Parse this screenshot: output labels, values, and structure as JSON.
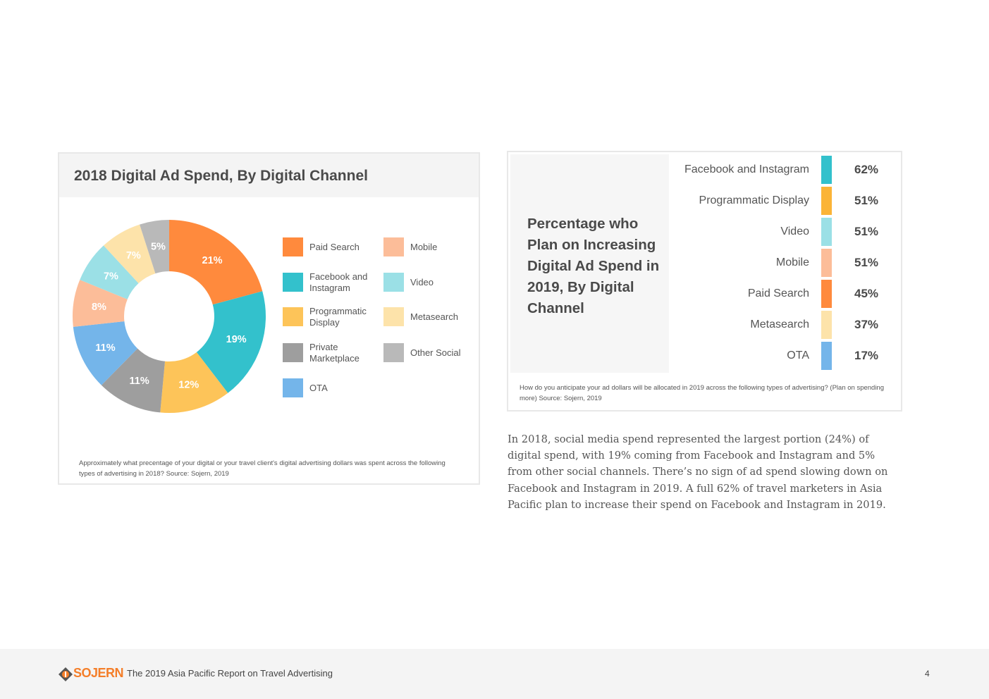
{
  "donut_card": {
    "title": "2018 Digital Ad Spend, By Digital Channel",
    "caption": "Approximately what precentage of your digital or your travel client's digital advertising dollars was spent across the following types of advertising in 2018? Source: Sojern, 2019"
  },
  "bar_card": {
    "title": "Percentage who Plan on Increasing Digital Ad Spend in 2019, By Digital Channel",
    "caption": "How do you anticipate your ad dollars will be allocated in 2019 across the following types of advertising? (Plan on spending more) Source: Sojern, 2019"
  },
  "body_text": "In 2018, social media spend represented the largest portion (24%) of digital spend, with 19% coming from Facebook and Instagram and 5% from other social channels. There’s no sign of ad spend slowing down on Facebook and Instagram in 2019. A full 62% of travel marketers in Asia Pacific plan to increase their spend on Facebook and Instagram in 2019.",
  "footer": {
    "brand": "SOJERN",
    "report_title": "The 2019 Asia Pacific Report on Travel Advertising",
    "page_number": "4",
    "logo_icon": "sojern-logo-icon"
  },
  "chart_data": [
    {
      "type": "pie",
      "title": "2018 Digital Ad Spend, By Digital Channel",
      "donut": true,
      "slices": [
        {
          "label": "Paid Search",
          "value": 21,
          "display": "21%",
          "color": "#ff8a3d"
        },
        {
          "label": "Facebook and Instagram",
          "value": 19,
          "display": "19%",
          "color": "#33c1cc"
        },
        {
          "label": "Programmatic Display",
          "value": 12,
          "display": "12%",
          "color": "#fdc459"
        },
        {
          "label": "Private Marketplace",
          "value": 11,
          "display": "11%",
          "color": "#9e9e9e"
        },
        {
          "label": "OTA",
          "value": 11,
          "display": "11%",
          "color": "#74b5ea"
        },
        {
          "label": "Mobile",
          "value": 8,
          "display": "8%",
          "color": "#fcbd99"
        },
        {
          "label": "Video",
          "value": 7,
          "display": "7%",
          "color": "#9be0e6"
        },
        {
          "label": "Metasearch",
          "value": 7,
          "display": "7%",
          "color": "#fde3aa"
        },
        {
          "label": "Other Social",
          "value": 5,
          "display": "5%",
          "color": "#b9b9b9"
        }
      ],
      "legend": [
        {
          "label": "Paid Search",
          "color": "#ff8a3d"
        },
        {
          "label": "Mobile",
          "color": "#fcbd99"
        },
        {
          "label": "Facebook and Instagram",
          "color": "#33c1cc"
        },
        {
          "label": "Video",
          "color": "#9be0e6"
        },
        {
          "label": "Programmatic Display",
          "color": "#fdc459"
        },
        {
          "label": "Metasearch",
          "color": "#fde3aa"
        },
        {
          "label": "Private Marketplace",
          "color": "#9e9e9e"
        },
        {
          "label": "Other Social",
          "color": "#b9b9b9"
        },
        {
          "label": "OTA",
          "color": "#74b5ea"
        }
      ]
    },
    {
      "type": "bar",
      "title": "Percentage who Plan on Increasing Digital Ad Spend in 2019, By Digital Channel",
      "categories": [
        "Facebook and Instagram",
        "Programmatic Display",
        "Video",
        "Mobile",
        "Paid Search",
        "Metasearch",
        "OTA"
      ],
      "values": [
        62,
        51,
        51,
        51,
        45,
        37,
        17
      ],
      "labels": [
        "62%",
        "51%",
        "51%",
        "51%",
        "45%",
        "37%",
        "17%"
      ],
      "colors": [
        "#33c1cc",
        "#fbb437",
        "#9be0e6",
        "#fcbd99",
        "#ff8a3d",
        "#fde3aa",
        "#74b5ea"
      ]
    }
  ]
}
